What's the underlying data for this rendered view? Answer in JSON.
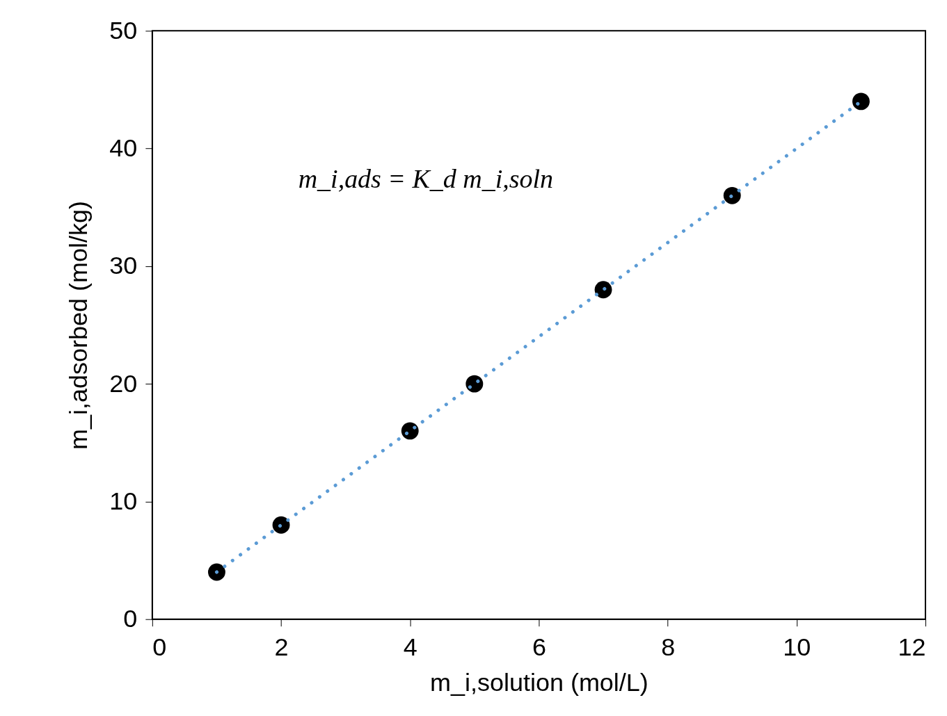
{
  "chart_data": {
    "type": "scatter",
    "xlabel": "m_i,solution (mol/L)",
    "ylabel": "m_i,adsorbed (mol/kg)",
    "annotations": [
      "m_i,ads = K_d m_i,soln"
    ],
    "series": [
      {
        "type": "scatter",
        "color": "#000000",
        "marker": "circle",
        "x": [
          1,
          2,
          4,
          5,
          7,
          9,
          11
        ],
        "values": [
          4,
          8,
          16,
          20,
          28,
          36,
          44
        ]
      },
      {
        "type": "line",
        "color": "#5b9bd5",
        "line_style": "dotted",
        "marker": "none",
        "x": [
          1,
          11
        ],
        "values": [
          4,
          44
        ]
      }
    ],
    "xlim": [
      0,
      12
    ],
    "xticks": [
      0,
      2,
      4,
      6,
      8,
      10,
      12
    ],
    "ylim": [
      0,
      50
    ],
    "yticks": [
      0,
      10,
      20,
      30,
      40,
      50
    ],
    "grid": false
  }
}
